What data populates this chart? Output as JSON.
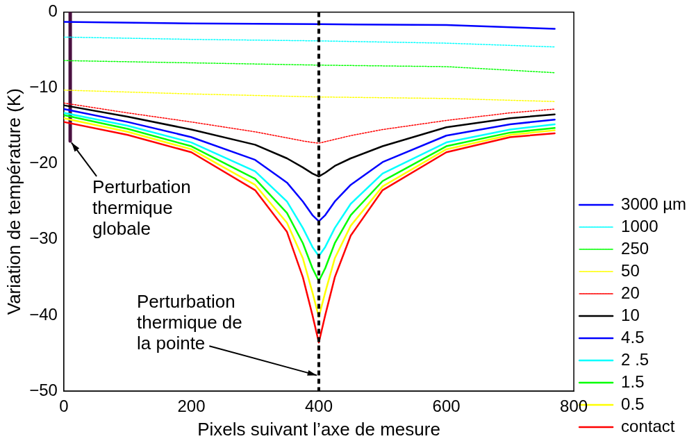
{
  "chart_data": {
    "type": "line",
    "xlabel": "Pixels suivant l’axe de mesure",
    "ylabel": "Variation de température (K)",
    "x": [
      0,
      100,
      200,
      300,
      350,
      375,
      390,
      400,
      410,
      425,
      450,
      500,
      600,
      700,
      770
    ],
    "xlim": [
      0,
      800
    ],
    "xticks": [
      0,
      200,
      400,
      600,
      800
    ],
    "ylim": [
      -50,
      0
    ],
    "yticks": [
      0,
      -10,
      -20,
      -30,
      -40,
      -50
    ],
    "grid": false,
    "legend": "right",
    "marker": "none",
    "line_style": "solid",
    "series": [
      {
        "name": "3000 µm",
        "color": "#0000ff",
        "x": [
          0,
          200,
          400,
          600,
          770
        ],
        "values": [
          -1.3,
          -1.5,
          -1.6,
          -1.7,
          -2.2
        ]
      },
      {
        "name": "1000",
        "color": "#00ffff",
        "line_style": "dotted",
        "x": [
          0,
          200,
          400,
          600,
          770
        ],
        "values": [
          -3.3,
          -3.6,
          -3.8,
          -4.1,
          -4.6
        ]
      },
      {
        "name": "250",
        "color": "#00ff00",
        "line_style": "dotted",
        "x": [
          0,
          200,
          400,
          600,
          770
        ],
        "values": [
          -6.4,
          -6.7,
          -7,
          -7.2,
          -8
        ]
      },
      {
        "name": "50",
        "color": "#ffff00",
        "line_style": "dotted",
        "x": [
          0,
          200,
          400,
          600,
          770
        ],
        "values": [
          -10.3,
          -10.8,
          -11.2,
          -11.4,
          -11.8
        ]
      },
      {
        "name": "20",
        "color": "#ff0000",
        "line_style": "dotted",
        "values": [
          -12,
          -13.3,
          -14.5,
          -15.8,
          -16.6,
          -17,
          -17.2,
          -17.3,
          -17.1,
          -16.8,
          -16.3,
          -15.5,
          -14.3,
          -13.3,
          -12.8
        ]
      },
      {
        "name": "10",
        "color": "#000000",
        "values": [
          -12.3,
          -13.8,
          -15.5,
          -17.5,
          -19.3,
          -20.5,
          -21.3,
          -21.7,
          -21.2,
          -20.3,
          -19.3,
          -17.7,
          -15.2,
          -14,
          -13.5
        ]
      },
      {
        "name": "4.5",
        "color": "#0000ff",
        "values": [
          -12.8,
          -14.5,
          -16.5,
          -19.5,
          -22.5,
          -25,
          -26.8,
          -27.6,
          -26.8,
          -25,
          -22.8,
          -19.8,
          -16.3,
          -14.8,
          -14.2
        ]
      },
      {
        "name": "2 .5",
        "color": "#00ffff",
        "values": [
          -13.3,
          -15,
          -17.2,
          -21,
          -25,
          -28.5,
          -31,
          -32.2,
          -31,
          -28.5,
          -25.3,
          -21.3,
          -17.2,
          -15.5,
          -14.8
        ]
      },
      {
        "name": "1.5",
        "color": "#00ff00",
        "values": [
          -13.6,
          -15.4,
          -17.7,
          -22,
          -26.5,
          -30.5,
          -33.8,
          -35.5,
          -33.8,
          -30.5,
          -26.8,
          -22.3,
          -17.7,
          -15.9,
          -15.3
        ]
      },
      {
        "name": "0.5",
        "color": "#ffff00",
        "values": [
          -14,
          -15.8,
          -18.1,
          -22.8,
          -27.8,
          -32.5,
          -37,
          -40.2,
          -37,
          -32.5,
          -28.2,
          -23,
          -18.1,
          -16.2,
          -15.6
        ]
      },
      {
        "name": "contact",
        "color": "#ff0000",
        "values": [
          -14.5,
          -16.2,
          -18.5,
          -23.5,
          -29,
          -35,
          -40,
          -43.6,
          -40,
          -35,
          -29.5,
          -23.5,
          -18.5,
          -16.5,
          -16
        ]
      },
      {
        "type": "line",
        "color": "#4a1040",
        "x": [
          10,
          10
        ],
        "values": [
          0,
          -17
        ]
      }
    ],
    "ref_lines": [
      {
        "axis": "x",
        "value": 400,
        "color": "#000000",
        "line_style": "dashed"
      }
    ],
    "annotations": [
      {
        "text": "Perturbation thermique globale",
        "x": 10,
        "y": -17
      },
      {
        "text": "Perturbation thermique de la pointe",
        "x": 400,
        "y": -48
      }
    ]
  }
}
